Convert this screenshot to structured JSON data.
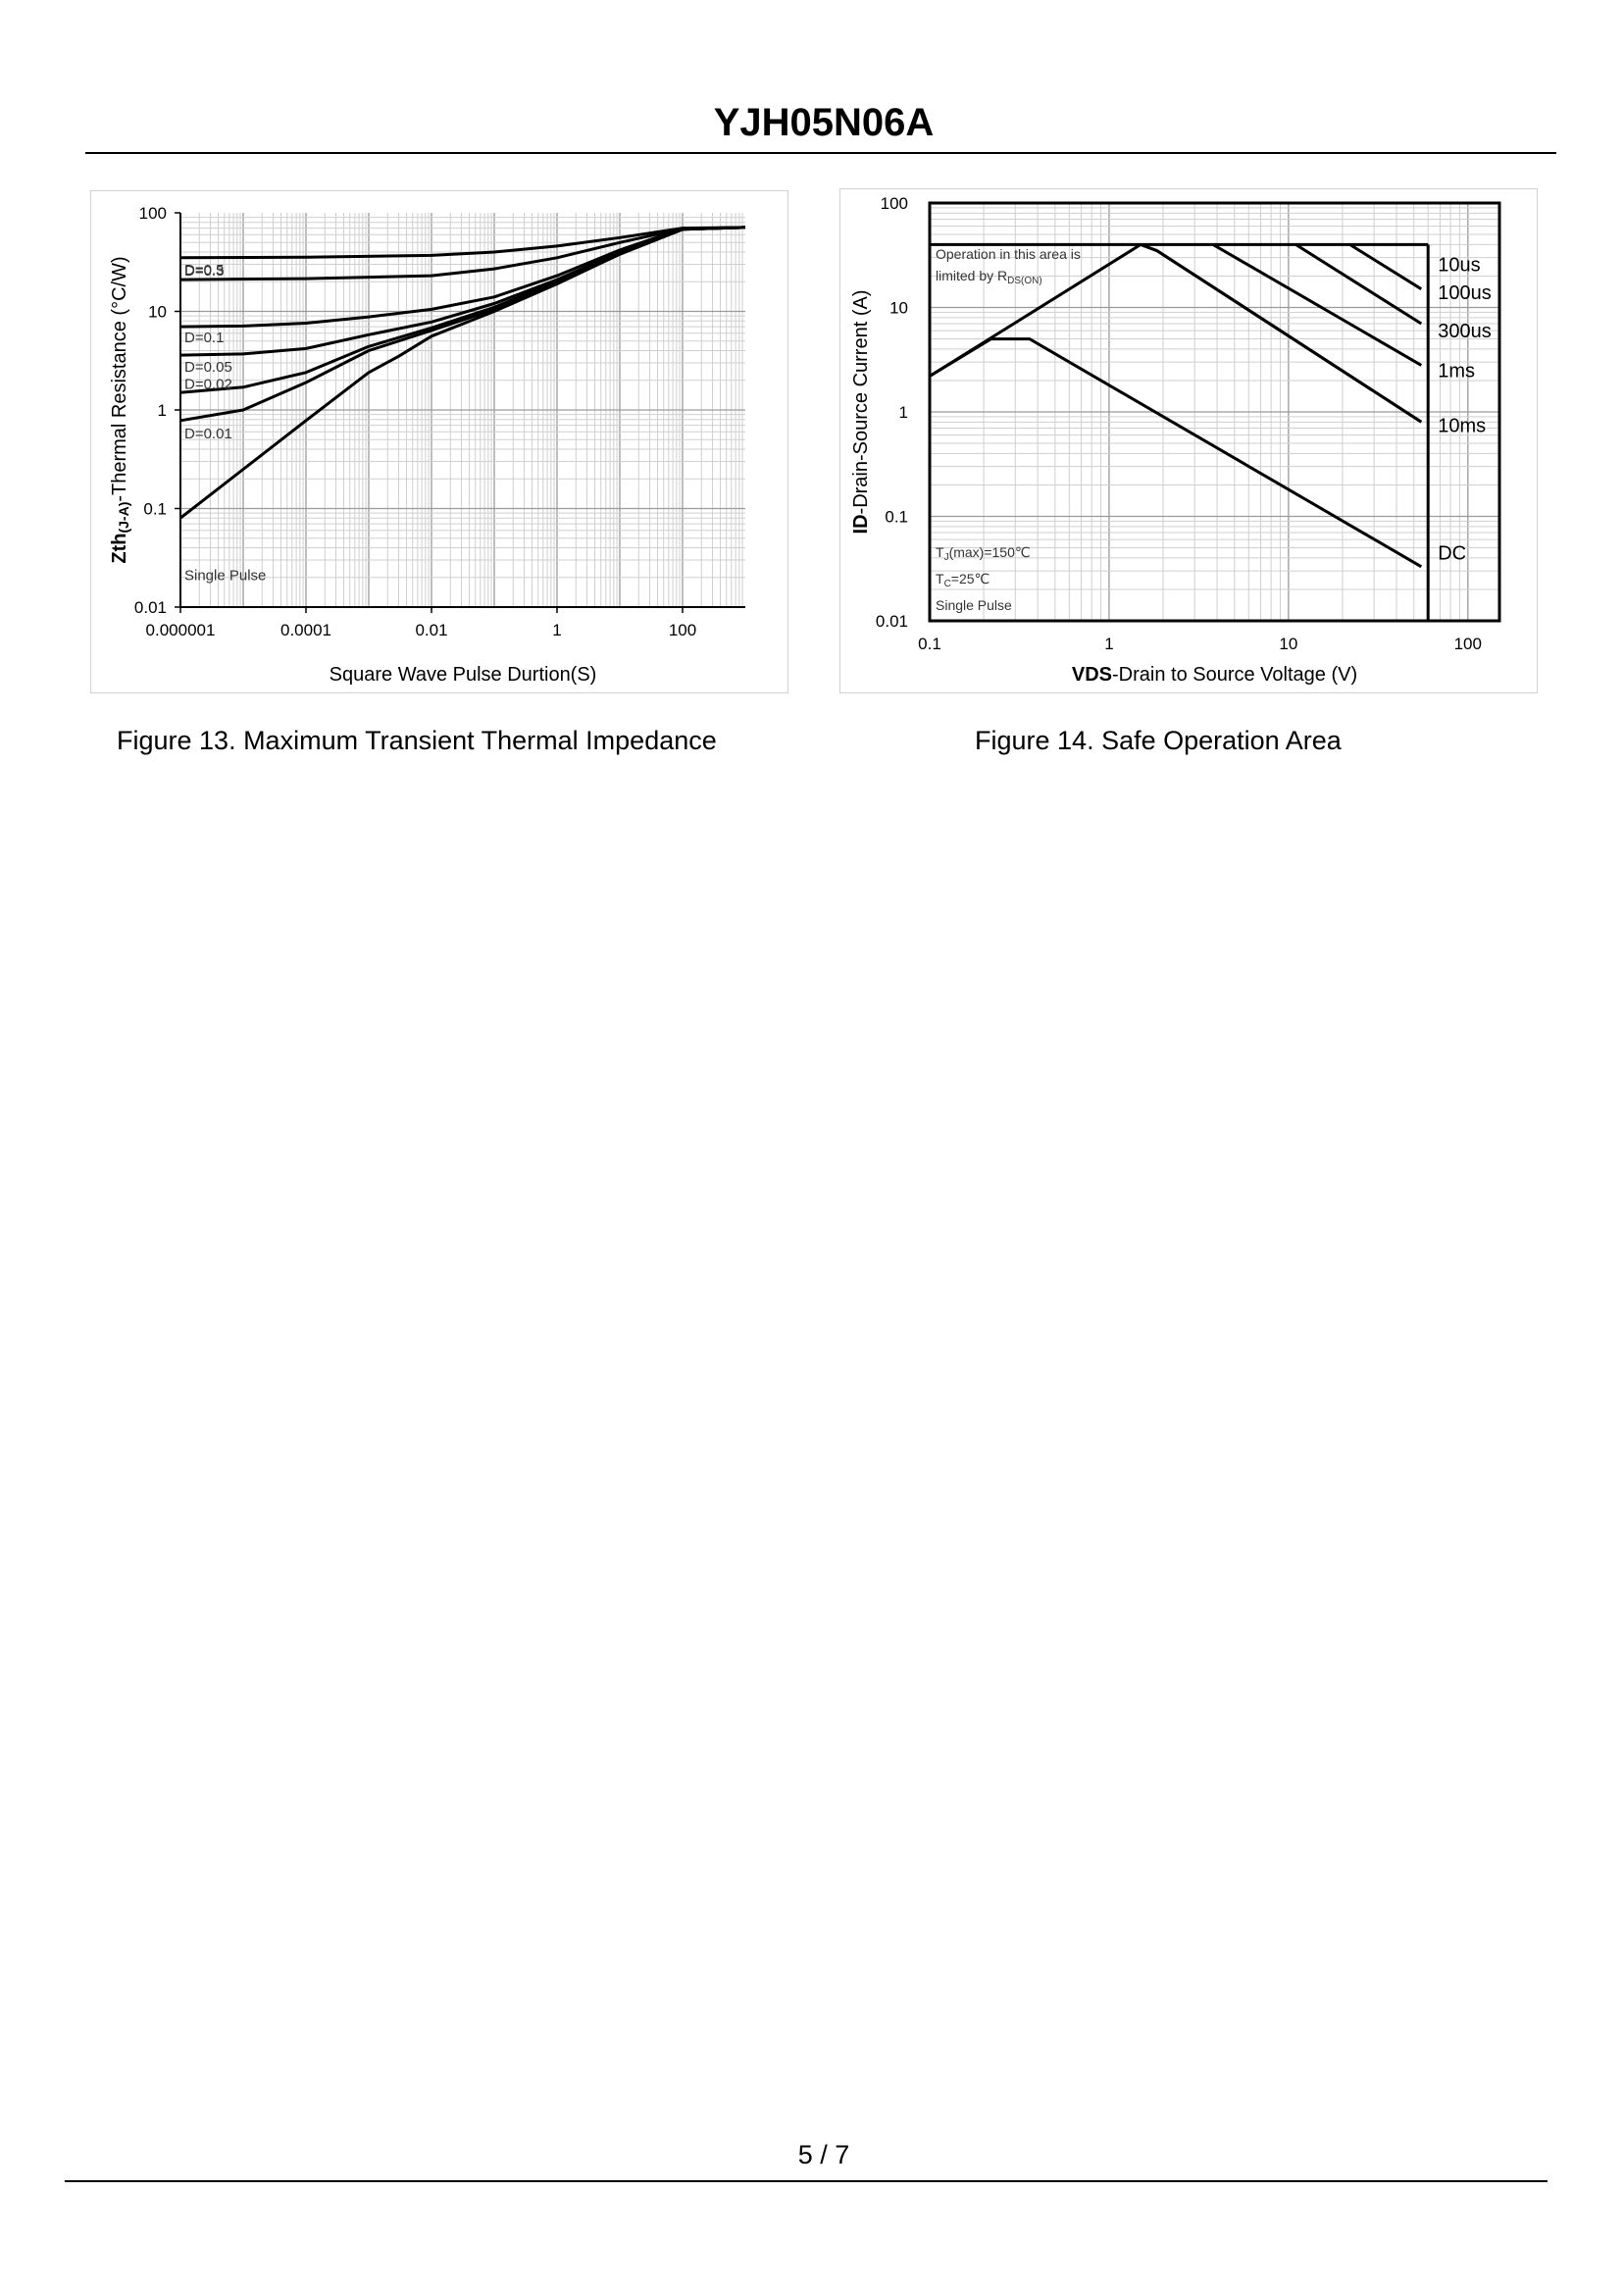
{
  "header": {
    "title": "YJH05N06A"
  },
  "footer": {
    "page": "5 / 7"
  },
  "figure13": {
    "caption": "Figure 13.  Maximum Transient Thermal Impedance"
  },
  "figure14": {
    "caption": "Figure 14.  Safe Operation Area"
  },
  "chart_data": [
    {
      "type": "line",
      "id": "transient-thermal-impedance",
      "xscale": "log",
      "yscale": "log",
      "xlim": [
        1e-06,
        1000
      ],
      "ylim": [
        0.01,
        100
      ],
      "xticks": [
        {
          "value": 1e-06,
          "label": "0.000001"
        },
        {
          "value": 0.0001,
          "label": "0.0001"
        },
        {
          "value": 0.01,
          "label": "0.01"
        },
        {
          "value": 1,
          "label": "1"
        },
        {
          "value": 100,
          "label": "100"
        }
      ],
      "yticks": [
        {
          "value": 100,
          "label": "100"
        },
        {
          "value": 10,
          "label": "10"
        },
        {
          "value": 1,
          "label": "1"
        },
        {
          "value": 0.1,
          "label": "0.1"
        },
        {
          "value": 0.01,
          "label": "0.01"
        }
      ],
      "xlabel": "Square Wave Pulse Durtion(S)",
      "ylabel": "Zth(J-A)-Thermal  Resistance (°C/W)",
      "ylabel_bold": "Zth",
      "ylabel_sub": "(J-A)",
      "ylabel_rest": "-Thermal  Resistance (°C/W)",
      "grid": true,
      "series": [
        {
          "name": "D=0.5",
          "x": [
            1e-06,
            0.0001,
            0.01,
            0.1,
            1,
            10,
            100,
            1000
          ],
          "y": [
            35,
            35.5,
            37,
            40,
            46,
            56,
            70,
            71
          ]
        },
        {
          "name": "D=0.3",
          "x": [
            1e-06,
            0.0001,
            0.01,
            0.1,
            1,
            10,
            100,
            1000
          ],
          "y": [
            21,
            21.5,
            23,
            27,
            35,
            50,
            69,
            71
          ]
        },
        {
          "name": "D=0.1",
          "x": [
            1e-06,
            1e-05,
            0.0001,
            0.001,
            0.01,
            0.1,
            1,
            10,
            100,
            1000
          ],
          "y": [
            7,
            7.1,
            7.6,
            8.8,
            10.5,
            14,
            23,
            42,
            69,
            71
          ]
        },
        {
          "name": "D=0.05",
          "x": [
            1e-06,
            1e-05,
            0.0001,
            0.001,
            0.01,
            0.1,
            1,
            10,
            100,
            1000
          ],
          "y": [
            3.6,
            3.7,
            4.2,
            5.8,
            7.8,
            12,
            21,
            40,
            68,
            71
          ]
        },
        {
          "name": "D=0.02",
          "x": [
            1e-06,
            1e-05,
            0.0001,
            0.001,
            0.01,
            0.1,
            1,
            10,
            100,
            1000
          ],
          "y": [
            1.5,
            1.7,
            2.4,
            4.4,
            6.8,
            11,
            20,
            39,
            68,
            71
          ]
        },
        {
          "name": "D=0.01",
          "x": [
            1e-06,
            1e-05,
            0.0001,
            0.001,
            0.01,
            0.1,
            1,
            10,
            100,
            1000
          ],
          "y": [
            0.78,
            1.0,
            1.9,
            4.0,
            6.4,
            10.5,
            19.5,
            38,
            68,
            71
          ]
        },
        {
          "name": "Single Pulse",
          "x": [
            1e-06,
            1e-05,
            0.0001,
            0.001,
            0.003,
            0.01,
            0.1,
            1,
            10,
            100,
            1000
          ],
          "y": [
            0.08,
            0.25,
            0.78,
            2.4,
            3.5,
            5.6,
            10,
            19,
            38,
            68,
            71
          ]
        }
      ]
    },
    {
      "type": "line",
      "id": "safe-operating-area",
      "xscale": "log",
      "yscale": "log",
      "xlim": [
        0.1,
        150
      ],
      "ylim": [
        0.01,
        100
      ],
      "xticks": [
        {
          "value": 0.1,
          "label": "0.1"
        },
        {
          "value": 1,
          "label": "1"
        },
        {
          "value": 10,
          "label": "10"
        },
        {
          "value": 100,
          "label": "100"
        }
      ],
      "yticks": [
        {
          "value": 100,
          "label": "100"
        },
        {
          "value": 10,
          "label": "10"
        },
        {
          "value": 1,
          "label": "1"
        },
        {
          "value": 0.1,
          "label": "0.1"
        },
        {
          "value": 0.01,
          "label": "0.01"
        }
      ],
      "xlabel": "VDS-Drain to Source Voltage (V)",
      "xlabel_bold": "VDS",
      "xlabel_rest": "-Drain to Source Voltage (V)",
      "ylabel": "ID-Drain-Source  Current  (A)",
      "ylabel_bold": "ID",
      "ylabel_rest": "-Drain-Source  Current  (A)",
      "grid": true,
      "vline_x": 60,
      "hline_y": 40,
      "series": [
        {
          "name": "10us",
          "x": [
            22,
            55
          ],
          "y": [
            40,
            15
          ]
        },
        {
          "name": "100us",
          "x": [
            11,
            55
          ],
          "y": [
            40,
            7
          ]
        },
        {
          "name": "300us",
          "x": [
            3.8,
            55
          ],
          "y": [
            40,
            2.8
          ]
        },
        {
          "name": "1ms",
          "x": [
            1.5,
            1.85,
            55
          ],
          "y": [
            40,
            35,
            0.8
          ]
        },
        {
          "name": "10ms",
          "x": [
            0.1,
            1.5,
            1.85,
            55
          ],
          "y": [
            2.2,
            40,
            35,
            0.8
          ]
        },
        {
          "name": "DC",
          "x": [
            0.1,
            0.22,
            0.36,
            55
          ],
          "y": [
            2.2,
            5,
            5,
            0.033
          ]
        }
      ],
      "series_labels": [
        {
          "name": "10us",
          "y": 26
        },
        {
          "name": "100us",
          "y": 14
        },
        {
          "name": "300us",
          "y": 6
        },
        {
          "name": "1ms",
          "y": 2.5
        },
        {
          "name": "10ms",
          "y": 0.75
        },
        {
          "name": "DC",
          "y": 0.045
        }
      ],
      "annotations": {
        "rds_line1": "Operation in this area is",
        "rds_line2": "limited by R",
        "rds_sub": "DS(ON)",
        "tj_main": "T",
        "tj_sub": "J",
        "tj_rest": "(max)=150℃",
        "tc_main": "T",
        "tc_sub": "C",
        "tc_rest": "=25℃",
        "single_pulse": "Single Pulse"
      }
    }
  ]
}
